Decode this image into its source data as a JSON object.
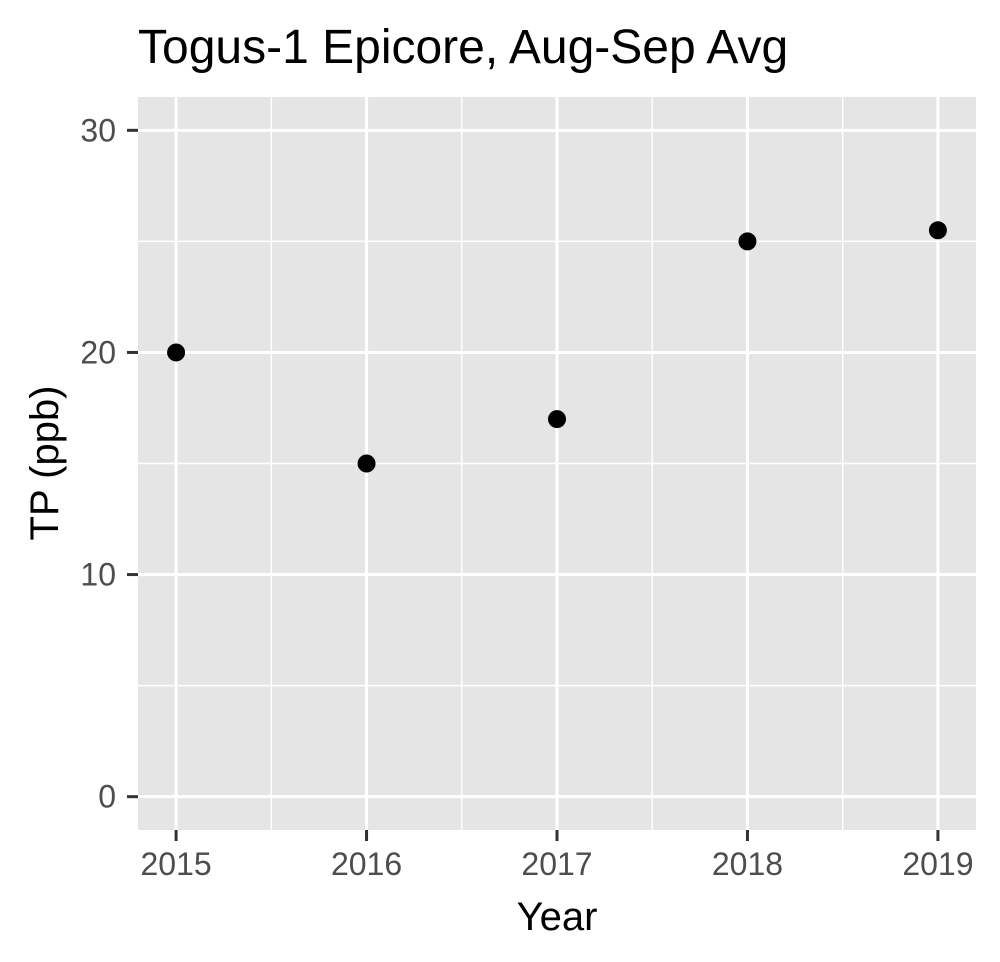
{
  "chart_data": {
    "type": "scatter",
    "title": "Togus-1 Epicore, Aug-Sep Avg",
    "xlabel": "Year",
    "ylabel": "TP (ppb)",
    "x": [
      2015,
      2016,
      2017,
      2018,
      2019
    ],
    "y": [
      20,
      15,
      17,
      25,
      25.5
    ],
    "x_ticks": [
      "2015",
      "2016",
      "2017",
      "2018",
      "2019"
    ],
    "y_ticks": [
      "0",
      "10",
      "20",
      "30"
    ],
    "xlim": [
      2014.8,
      2019.2
    ],
    "ylim": [
      -1.5,
      31.5
    ],
    "grid": true,
    "colors": {
      "panel": "#e5e5e5",
      "grid": "#ffffff",
      "points": "#000000",
      "tick_text": "#4d4d4d",
      "tick_mark": "#333333"
    }
  }
}
